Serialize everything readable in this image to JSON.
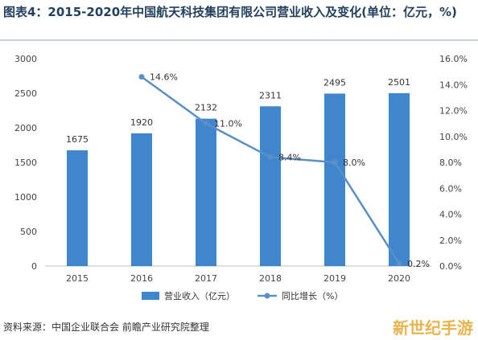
{
  "title": "图表4：2015-2020年中国航天科技集团有限公司营业收入及变化(单位：亿元，%)",
  "source": "资料来源：中国企业联合会 前瞻产业研究院整理",
  "brand": "新世纪手游",
  "chart_data": {
    "type": "bar",
    "categories": [
      "2015",
      "2016",
      "2017",
      "2018",
      "2019",
      "2020"
    ],
    "series": [
      {
        "name": "营业收入（亿元）",
        "type": "bar",
        "axis": "left",
        "values": [
          1675,
          1920,
          2132,
          2311,
          2495,
          2501
        ],
        "labels": [
          "1675",
          "1920",
          "2132",
          "2311",
          "2495",
          "2501"
        ],
        "color": "#3f86cf"
      },
      {
        "name": "同比增长（%）",
        "type": "line",
        "axis": "right",
        "values": [
          null,
          14.6,
          11.0,
          8.4,
          8.0,
          0.2
        ],
        "labels": [
          "",
          "14.6%",
          "11.0%",
          "8.4%",
          "8.0%",
          "0.2%"
        ],
        "color": "#5b8fc7"
      }
    ],
    "ylim_left": [
      0,
      3000
    ],
    "yticks_left": [
      "0",
      "500",
      "1000",
      "1500",
      "2000",
      "2500",
      "3000"
    ],
    "ylim_right": [
      0,
      16
    ],
    "yticks_right": [
      "0.0%",
      "2.0%",
      "4.0%",
      "6.0%",
      "8.0%",
      "10.0%",
      "12.0%",
      "14.0%",
      "16.0%"
    ],
    "grid": false,
    "legend": "bottom"
  }
}
